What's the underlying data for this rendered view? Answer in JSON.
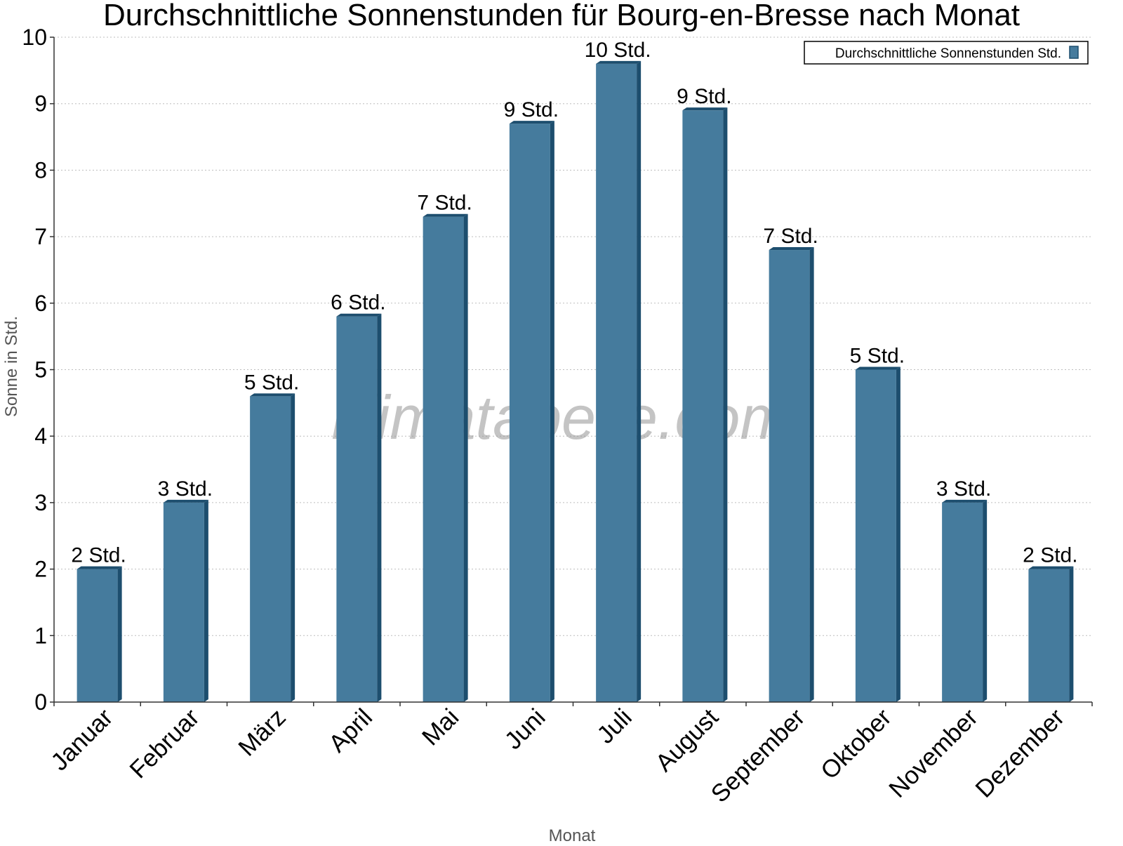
{
  "chart_data": {
    "type": "bar",
    "title": "Durchschnittliche Sonnenstunden für Bourg-en-Bresse nach Monat",
    "xlabel": "Monat",
    "ylabel": "Sonne in Std.",
    "ylim": [
      0,
      10
    ],
    "yticks": [
      0,
      1,
      2,
      3,
      4,
      5,
      6,
      7,
      8,
      9,
      10
    ],
    "grid": true,
    "legend_position": "top-right",
    "watermark": "klimatabelle.com",
    "categories": [
      "Januar",
      "Februar",
      "März",
      "April",
      "Mai",
      "Juni",
      "Juli",
      "August",
      "September",
      "Oktober",
      "November",
      "Dezember"
    ],
    "series": [
      {
        "name": "Durchschnittliche Sonnenstunden Std.",
        "color": "#457b9d",
        "side_color": "#1d4e6e",
        "values": [
          2.0,
          3.0,
          4.6,
          5.8,
          7.3,
          8.7,
          9.6,
          8.9,
          6.8,
          5.0,
          3.0,
          2.0
        ],
        "data_labels": [
          "2 Std.",
          "3 Std.",
          "5 Std.",
          "6 Std.",
          "7 Std.",
          "9 Std.",
          "10 Std.",
          "9 Std.",
          "7 Std.",
          "5 Std.",
          "3 Std.",
          "2 Std."
        ]
      }
    ]
  }
}
